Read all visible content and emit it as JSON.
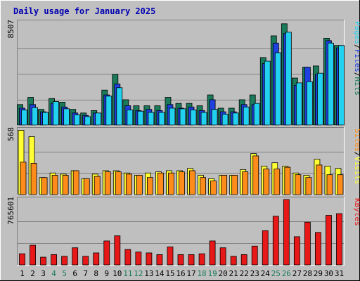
{
  "colors": {
    "background": "#c0c0c0",
    "plot_area": "#bfbfbf",
    "grid": "#808080",
    "hits": "#1a7a5a",
    "files": "#1e40e0",
    "pages": "#22d0f0",
    "visits": "#ff8c1a",
    "sites": "#ffff33",
    "kbytes": "#e81818",
    "title": "#0000b0",
    "day_normal": "#000000",
    "day_weekend": "#1a7a5a"
  },
  "chart_data": {
    "type": "bar",
    "title": "Daily usage for January 2025",
    "days": [
      "1",
      "2",
      "3",
      "4",
      "5",
      "6",
      "7",
      "8",
      "9",
      "10",
      "11",
      "12",
      "13",
      "14",
      "15",
      "16",
      "17",
      "18",
      "19",
      "20",
      "21",
      "22",
      "23",
      "24",
      "25",
      "26",
      "27",
      "28",
      "29",
      "30",
      "31"
    ],
    "weekend_days": [
      "4",
      "5",
      "11",
      "12",
      "18",
      "19",
      "25",
      "26"
    ],
    "panels": [
      {
        "name": "hits_files_pages",
        "max_label": "8507",
        "ymax": 8507,
        "legend": [
          {
            "text": "Pages",
            "color_key": "pages"
          },
          {
            "text": "/",
            "color_key": "day_normal"
          },
          {
            "text": "Files",
            "color_key": "files"
          },
          {
            "text": "/",
            "color_key": "day_normal"
          },
          {
            "text": "Hits",
            "color_key": "hits"
          }
        ],
        "series": [
          {
            "name": "Hits",
            "color_key": "hits",
            "values": [
              1700,
              2300,
              1300,
              2200,
              1900,
              1300,
              1000,
              1200,
              2900,
              4200,
              2100,
              1600,
              1600,
              1600,
              2300,
              1800,
              1800,
              1600,
              2500,
              1400,
              1400,
              2100,
              2500,
              5600,
              7400,
              8400,
              3900,
              4800,
              4900,
              7200,
              6600
            ]
          },
          {
            "name": "Files",
            "color_key": "files",
            "values": [
              1400,
              1700,
              1100,
              1800,
              1500,
              1000,
              800,
              1000,
              2500,
              3400,
              1600,
              1200,
              1300,
              1200,
              1700,
              1400,
              1500,
              1200,
              2100,
              1100,
              1100,
              1700,
              1700,
              5100,
              6800,
              7600,
              3300,
              4800,
              4200,
              7000,
              6400
            ]
          },
          {
            "name": "Pages",
            "color_key": "pages",
            "values": [
              1250,
              1450,
              1050,
              1950,
              1350,
              850,
              700,
              1000,
              2400,
              3100,
              1250,
              1150,
              1050,
              1050,
              1400,
              1350,
              1250,
              1050,
              1300,
              900,
              1000,
              1500,
              1800,
              5300,
              6000,
              7700,
              3500,
              3600,
              4300,
              6800,
              6600
            ]
          }
        ]
      },
      {
        "name": "visits_sites",
        "max_label": "568",
        "ymax": 568,
        "legend": [
          {
            "text": "Sites",
            "color_key": "visits"
          },
          {
            "text": "/",
            "color_key": "day_normal"
          },
          {
            "text": "Visits",
            "color_key": "sites"
          }
        ],
        "series": [
          {
            "name": "Visits",
            "color_key": "sites",
            "values": [
              565,
              510,
              150,
              190,
              180,
              210,
              140,
              180,
              210,
              210,
              190,
              170,
              190,
              200,
              210,
              210,
              230,
              170,
              140,
              170,
              170,
              220,
              360,
              250,
              280,
              250,
              190,
              170,
              310,
              250,
              230
            ]
          },
          {
            "name": "Sites",
            "color_key": "visits",
            "values": [
              285,
              275,
              150,
              170,
              170,
              210,
              140,
              160,
              200,
              200,
              180,
              170,
              150,
              190,
              190,
              200,
              210,
              150,
              120,
              170,
              170,
              200,
              340,
              225,
              225,
              240,
              175,
              150,
              260,
              175,
              175
            ]
          }
        ]
      },
      {
        "name": "kbytes",
        "max_label": "765601",
        "ymax": 765601,
        "legend": [
          {
            "text": "KBytes",
            "color_key": "kbytes"
          }
        ],
        "series": [
          {
            "name": "KBytes",
            "color_key": "kbytes",
            "values": [
              130000,
              230000,
              90000,
              120000,
              100000,
              200000,
              100000,
              140000,
              280000,
              340000,
              180000,
              150000,
              140000,
              120000,
              210000,
              120000,
              120000,
              130000,
              280000,
              200000,
              100000,
              120000,
              220000,
              400000,
              570000,
              765601,
              330000,
              500000,
              380000,
              580000,
              600000
            ]
          }
        ]
      }
    ]
  }
}
